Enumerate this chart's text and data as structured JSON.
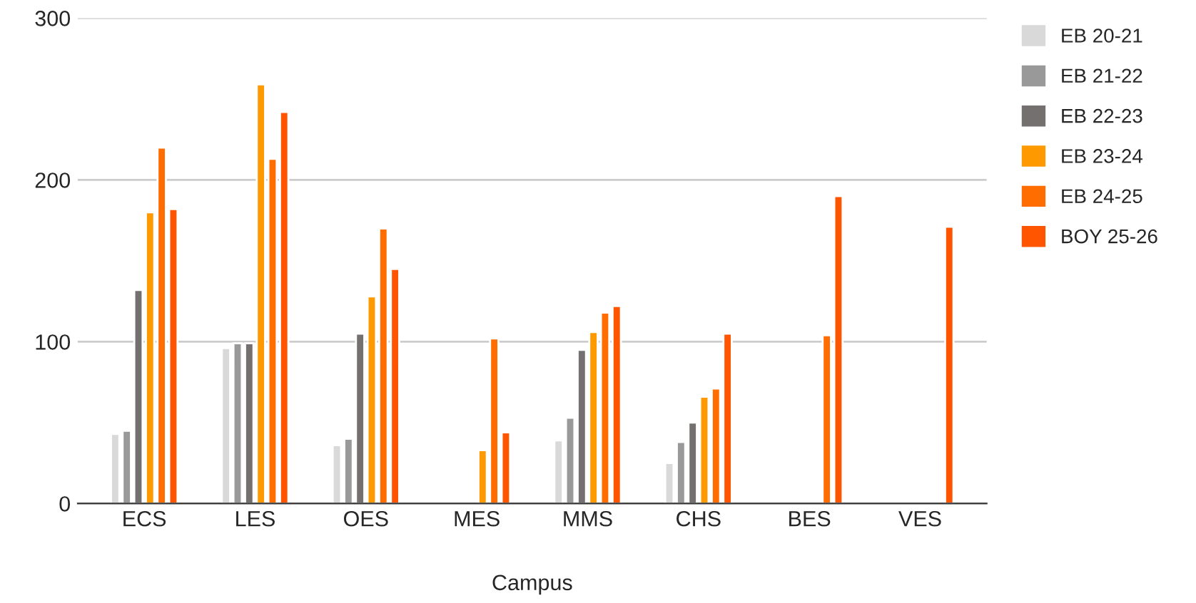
{
  "chart_data": {
    "type": "bar",
    "xlabel": "Campus",
    "categories": [
      "ECS",
      "LES",
      "OES",
      "MES",
      "MMS",
      "CHS",
      "BES",
      "VES"
    ],
    "series": [
      {
        "name": "EB 20-21",
        "color": "#d9d9d9",
        "values": [
          43,
          96,
          36,
          null,
          39,
          25,
          null,
          null
        ]
      },
      {
        "name": "EB 21-22",
        "color": "#999999",
        "values": [
          45,
          99,
          40,
          null,
          53,
          38,
          null,
          null
        ]
      },
      {
        "name": "EB 22-23",
        "color": "#757070",
        "values": [
          132,
          99,
          105,
          null,
          95,
          50,
          null,
          null
        ]
      },
      {
        "name": "EB 23-24",
        "color": "#ff9900",
        "values": [
          180,
          259,
          128,
          33,
          106,
          66,
          null,
          null
        ]
      },
      {
        "name": "EB 24-25",
        "color": "#ff6d01",
        "values": [
          220,
          213,
          170,
          102,
          118,
          71,
          104,
          null
        ]
      },
      {
        "name": "BOY 25-26",
        "color": "#ff5500",
        "values": [
          182,
          242,
          145,
          44,
          122,
          105,
          190,
          171
        ]
      }
    ],
    "ylim": [
      0,
      300
    ],
    "yticks": [
      0,
      100,
      200,
      300
    ],
    "grid": "y",
    "legend": "top right"
  }
}
